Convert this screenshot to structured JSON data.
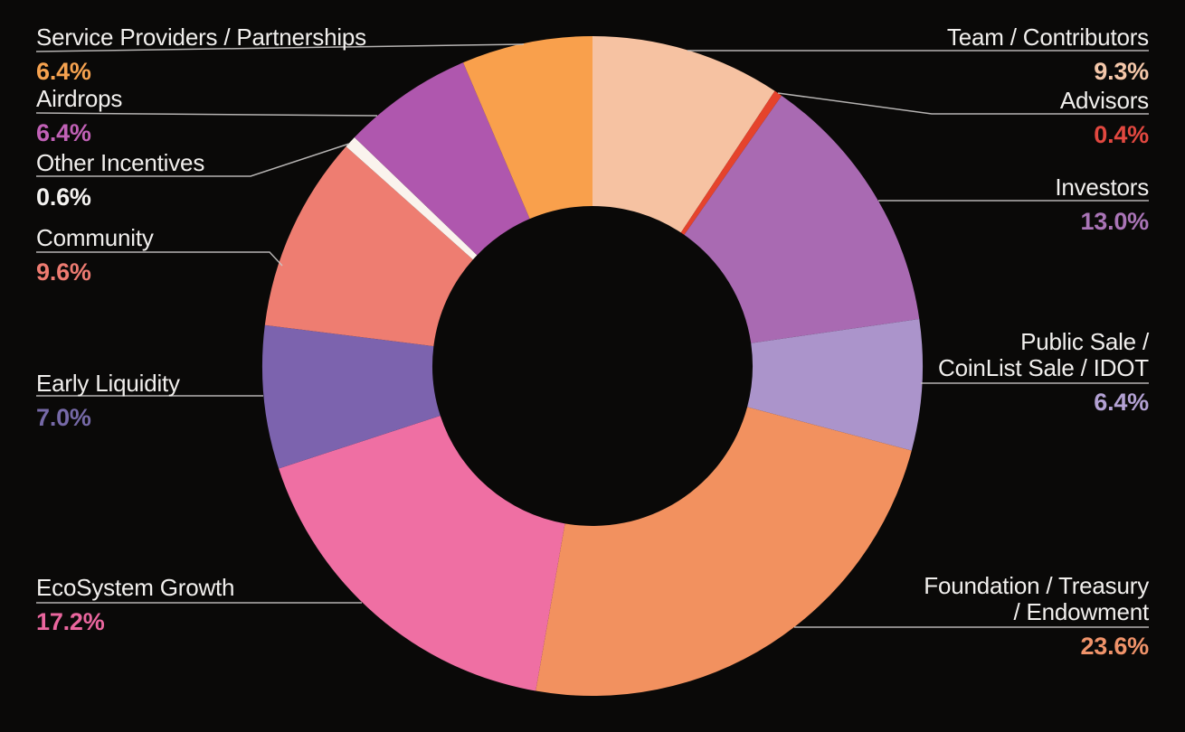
{
  "chart_data": {
    "type": "pie",
    "subtype": "donut",
    "title": "",
    "background_color": "#0a0908",
    "label_text_color": "#f1efed",
    "leader_line_color": "#c9c7c5",
    "inner_radius_ratio": 0.485,
    "start_angle": "12-oclock",
    "direction": "clockwise",
    "total_percent": 100,
    "segments": [
      {
        "label": "Team / Contributors",
        "value": 9.3,
        "pct_label": "9.3%",
        "color": "#f6c2a2",
        "pct_color": "#f4c7a9"
      },
      {
        "label": "Advisors",
        "value": 0.4,
        "pct_label": "0.4%",
        "color": "#e5432c",
        "pct_color": "#e24840"
      },
      {
        "label": "Investors",
        "value": 13.0,
        "pct_label": "13.0%",
        "color": "#a96ab2",
        "pct_color": "#a974b6"
      },
      {
        "label": "Public Sale / CoinList Sale / IDOT",
        "label_lines": [
          "Public Sale /",
          "CoinList Sale / IDOT"
        ],
        "value": 6.4,
        "pct_label": "6.4%",
        "color": "#ab94cb",
        "pct_color": "#b3a1d3"
      },
      {
        "label": "Foundation / Treasury / Endowment",
        "label_lines": [
          "Foundation / Treasury",
          "/ Endowment"
        ],
        "value": 23.6,
        "pct_label": "23.6%",
        "color": "#f2915f",
        "pct_color": "#f0936a"
      },
      {
        "label": "EcoSystem Growth",
        "value": 17.2,
        "pct_label": "17.2%",
        "color": "#ef6fa3",
        "pct_color": "#ea669e"
      },
      {
        "label": "Early Liquidity",
        "value": 7.0,
        "pct_label": "7.0%",
        "color": "#7c63ae",
        "pct_color": "#7669a7"
      },
      {
        "label": "Community",
        "value": 9.6,
        "pct_label": "9.6%",
        "color": "#ee7d71",
        "pct_color": "#ed7b71"
      },
      {
        "label": "Other Incentives",
        "value": 0.6,
        "pct_label": "0.6%",
        "color": "#faf3ed",
        "pct_color": "#f4f2f0"
      },
      {
        "label": "Airdrops",
        "value": 6.4,
        "pct_label": "6.4%",
        "color": "#af57ae",
        "pct_color": "#c161b6"
      },
      {
        "label": "Service Providers / Partnerships",
        "value": 6.4,
        "pct_label": "6.4%",
        "color": "#f9a04c",
        "pct_color": "#f6a24f"
      }
    ]
  }
}
